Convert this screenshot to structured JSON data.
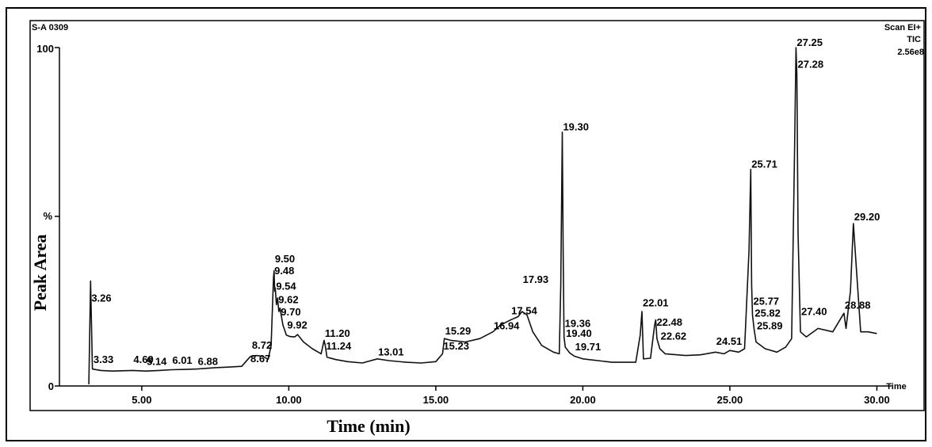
{
  "chart_data": {
    "type": "line",
    "sample_id": "S-A 0309",
    "scan_mode": "Scan  EI+",
    "trace": "TIC",
    "max_intensity": "2.56e8",
    "xlabel": "Time (min)",
    "ylabel": "Peak Area",
    "y_percent_label": "%",
    "x_axis_end_label": "Time",
    "xlim": [
      2.2,
      30.5
    ],
    "ylim": [
      0,
      100
    ],
    "x_ticks": [
      {
        "value": 5,
        "label": "5.00"
      },
      {
        "value": 10,
        "label": "10.00"
      },
      {
        "value": 15,
        "label": "15.00"
      },
      {
        "value": 20,
        "label": "20.00"
      },
      {
        "value": 25,
        "label": "25.00"
      },
      {
        "value": 30,
        "label": "30.00"
      }
    ],
    "y_ticks": [
      {
        "value": 0,
        "label": "0"
      },
      {
        "value": 100,
        "label": "100"
      }
    ],
    "trace_points": [
      [
        3.2,
        0.5
      ],
      [
        3.26,
        31
      ],
      [
        3.32,
        5.0
      ],
      [
        3.6,
        4.6
      ],
      [
        4.0,
        4.4
      ],
      [
        4.69,
        4.6
      ],
      [
        5.14,
        4.4
      ],
      [
        5.6,
        4.6
      ],
      [
        6.01,
        4.8
      ],
      [
        6.5,
        4.9
      ],
      [
        6.88,
        5.0
      ],
      [
        7.5,
        5.4
      ],
      [
        8.0,
        5.6
      ],
      [
        8.4,
        5.8
      ],
      [
        8.67,
        8.5
      ],
      [
        8.72,
        8.8
      ],
      [
        8.9,
        9.0
      ],
      [
        9.1,
        8.8
      ],
      [
        9.3,
        7.9
      ],
      [
        9.4,
        12
      ],
      [
        9.48,
        32
      ],
      [
        9.5,
        34
      ],
      [
        9.52,
        28
      ],
      [
        9.54,
        29
      ],
      [
        9.58,
        24
      ],
      [
        9.62,
        26
      ],
      [
        9.66,
        22
      ],
      [
        9.7,
        23
      ],
      [
        9.8,
        18
      ],
      [
        9.92,
        15
      ],
      [
        10.05,
        14.6
      ],
      [
        10.2,
        14.5
      ],
      [
        10.3,
        15.2
      ],
      [
        10.5,
        13
      ],
      [
        10.8,
        11
      ],
      [
        11.1,
        9.5
      ],
      [
        11.2,
        13.5
      ],
      [
        11.24,
        12
      ],
      [
        11.3,
        8.5
      ],
      [
        11.6,
        7.8
      ],
      [
        12.0,
        7.2
      ],
      [
        12.5,
        6.8
      ],
      [
        13.01,
        8.0
      ],
      [
        13.4,
        7.5
      ],
      [
        14.0,
        7.0
      ],
      [
        14.5,
        6.8
      ],
      [
        15.0,
        7.2
      ],
      [
        15.23,
        9.5
      ],
      [
        15.29,
        14
      ],
      [
        15.5,
        13.5
      ],
      [
        16.0,
        13
      ],
      [
        16.5,
        14
      ],
      [
        16.94,
        16
      ],
      [
        17.2,
        18
      ],
      [
        17.54,
        19.5
      ],
      [
        17.8,
        20.5
      ],
      [
        17.93,
        22
      ],
      [
        18.1,
        21
      ],
      [
        18.3,
        16
      ],
      [
        18.6,
        12
      ],
      [
        19.0,
        10
      ],
      [
        19.2,
        9.5
      ],
      [
        19.25,
        30
      ],
      [
        19.3,
        75
      ],
      [
        19.33,
        40
      ],
      [
        19.36,
        14.5
      ],
      [
        19.4,
        11.5
      ],
      [
        19.55,
        9.8
      ],
      [
        19.71,
        8.8
      ],
      [
        20.0,
        8.0
      ],
      [
        21.0,
        7.0
      ],
      [
        21.8,
        7.0
      ],
      [
        21.95,
        15
      ],
      [
        22.01,
        22
      ],
      [
        22.06,
        8.0
      ],
      [
        22.3,
        8.2
      ],
      [
        22.44,
        18
      ],
      [
        22.48,
        19.5
      ],
      [
        22.52,
        14
      ],
      [
        22.62,
        11
      ],
      [
        22.8,
        9.5
      ],
      [
        23.5,
        9.0
      ],
      [
        24.0,
        9.2
      ],
      [
        24.51,
        10
      ],
      [
        24.8,
        9.5
      ],
      [
        25.0,
        10.5
      ],
      [
        25.3,
        10
      ],
      [
        25.5,
        11
      ],
      [
        25.65,
        40
      ],
      [
        25.71,
        64
      ],
      [
        25.74,
        30
      ],
      [
        25.77,
        21
      ],
      [
        25.82,
        17
      ],
      [
        25.89,
        13
      ],
      [
        26.2,
        11
      ],
      [
        26.6,
        10
      ],
      [
        26.9,
        11.5
      ],
      [
        27.1,
        14
      ],
      [
        27.2,
        70
      ],
      [
        27.25,
        100
      ],
      [
        27.28,
        92
      ],
      [
        27.32,
        45
      ],
      [
        27.4,
        16
      ],
      [
        27.6,
        14.5
      ],
      [
        28.0,
        17
      ],
      [
        28.5,
        16
      ],
      [
        28.88,
        21.5
      ],
      [
        28.95,
        17
      ],
      [
        29.1,
        28
      ],
      [
        29.2,
        48
      ],
      [
        29.3,
        35
      ],
      [
        29.45,
        16
      ],
      [
        29.7,
        16
      ],
      [
        30.0,
        15.5
      ]
    ],
    "peak_labels": [
      {
        "label": "3.26",
        "x": 3.26,
        "y": 25
      },
      {
        "label": "3.33",
        "x": 3.33,
        "y": 6.8
      },
      {
        "label": "4.69",
        "x": 4.69,
        "y": 6.8
      },
      {
        "label": "5.14",
        "x": 5.14,
        "y": 6.2
      },
      {
        "label": "6.01",
        "x": 6.01,
        "y": 6.5
      },
      {
        "label": "6.88",
        "x": 6.88,
        "y": 6.2
      },
      {
        "label": "8.67",
        "x": 8.67,
        "y": 7.0
      },
      {
        "label": "8.72",
        "x": 8.72,
        "y": 11
      },
      {
        "label": "9.48",
        "x": 9.48,
        "y": 33
      },
      {
        "label": "9.50",
        "x": 9.5,
        "y": 36.5
      },
      {
        "label": "9.54",
        "x": 9.54,
        "y": 28.5
      },
      {
        "label": "9.62",
        "x": 9.62,
        "y": 24.5
      },
      {
        "label": "9.70",
        "x": 9.7,
        "y": 20.8
      },
      {
        "label": "9.92",
        "x": 9.92,
        "y": 17
      },
      {
        "label": "11.20",
        "x": 11.2,
        "y": 14.5
      },
      {
        "label": "11.24",
        "x": 11.24,
        "y": 10.8
      },
      {
        "label": "13.01",
        "x": 13.01,
        "y": 9
      },
      {
        "label": "15.23",
        "x": 15.23,
        "y": 10.8
      },
      {
        "label": "15.29",
        "x": 15.29,
        "y": 15.2
      },
      {
        "label": "16.94",
        "x": 16.94,
        "y": 16.8
      },
      {
        "label": "17.54",
        "x": 17.54,
        "y": 21.2
      },
      {
        "label": "17.93",
        "x": 17.93,
        "y": 30.5
      },
      {
        "label": "19.30",
        "x": 19.3,
        "y": 75.5
      },
      {
        "label": "19.36",
        "x": 19.36,
        "y": 17.5
      },
      {
        "label": "19.40",
        "x": 19.4,
        "y": 14.5
      },
      {
        "label": "19.71",
        "x": 19.71,
        "y": 10.5
      },
      {
        "label": "22.01",
        "x": 22.01,
        "y": 23.5
      },
      {
        "label": "22.48",
        "x": 22.48,
        "y": 17.8
      },
      {
        "label": "22.62",
        "x": 22.62,
        "y": 13.7
      },
      {
        "label": "24.51",
        "x": 24.51,
        "y": 12.2
      },
      {
        "label": "25.71",
        "x": 25.71,
        "y": 64.5
      },
      {
        "label": "25.77",
        "x": 25.77,
        "y": 24
      },
      {
        "label": "25.82",
        "x": 25.82,
        "y": 20.5
      },
      {
        "label": "25.89",
        "x": 25.89,
        "y": 16.8
      },
      {
        "label": "27.25",
        "x": 27.25,
        "y": 100.5
      },
      {
        "label": "27.28",
        "x": 27.28,
        "y": 94
      },
      {
        "label": "27.40",
        "x": 27.4,
        "y": 21
      },
      {
        "label": "28.88",
        "x": 28.88,
        "y": 22.8
      },
      {
        "label": "29.20",
        "x": 29.2,
        "y": 49
      }
    ],
    "grid": false,
    "legend": "none"
  }
}
